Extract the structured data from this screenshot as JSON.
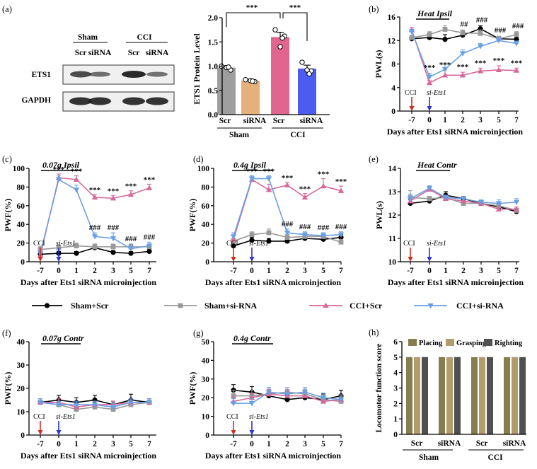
{
  "colors": {
    "sham_scr": "#000000",
    "sham_sirna": "#999999",
    "cci_scr": "#d6699b",
    "cci_sirna": "#6b9fe3",
    "bar_sham_scr": "#9e9e9e",
    "bar_sham_sirna": "#e4b07c",
    "bar_cci_scr": "#e0668f",
    "bar_cci_sirna": "#4d5cf0",
    "placing": "#857e4e",
    "grasping": "#b39c6b",
    "righting": "#505050",
    "cci_arrow": "#d62a20",
    "si_arrow": "#2a35d6"
  },
  "legend": {
    "sham_scr": "Sham+Scr",
    "sham_sirna": "Sham+si-RNA",
    "cci_scr": "CCI+Scr",
    "cci_sirna": "CCI+si-RNA"
  },
  "blot": {
    "panel_label": "(a)",
    "groups": [
      "Sham",
      "CCI"
    ],
    "lanes": [
      "Scr",
      "siRNA",
      "Scr",
      "siRNA"
    ],
    "rows": [
      "ETS1",
      "GAPDH"
    ]
  },
  "chart_data": [
    {
      "id": "a",
      "type": "bar",
      "panel_label": "",
      "ylabel": "ETS1 Protein Level",
      "ylim": [
        0,
        2.0
      ],
      "yticks": [
        "0.0",
        "0.5",
        "1.0",
        "1.5",
        "2.0"
      ],
      "categories": [
        "Scr",
        "siRNA",
        "Scr",
        "siRNA"
      ],
      "groups": [
        "Sham",
        "CCI"
      ],
      "values": [
        0.97,
        0.7,
        1.6,
        0.95
      ],
      "errors": [
        0.04,
        0.03,
        0.1,
        0.07
      ],
      "points": [
        [
          1.0,
          0.92,
          0.97,
          0.98
        ],
        [
          0.72,
          0.68,
          0.7,
          0.69
        ],
        [
          1.75,
          1.62,
          1.4,
          1.58
        ],
        [
          1.08,
          0.9,
          0.92,
          0.84
        ]
      ],
      "significance": [
        "***",
        "***"
      ]
    },
    {
      "id": "b",
      "type": "line",
      "panel_label": "(b)",
      "title": "Heat Ipsil",
      "ylabel": "PWL(s)",
      "xlabel": "Days after Ets1 siRNA microinjection",
      "ylim": [
        0,
        16
      ],
      "yticks": [
        "0",
        "4",
        "8",
        "12",
        "16"
      ],
      "xticks": [
        "-7",
        "0",
        "1",
        "2",
        "3",
        "5",
        "7"
      ],
      "series": [
        {
          "name": "Sham+Scr",
          "key": "sham_scr",
          "values": [
            12.3,
            12.5,
            12.2,
            12.9,
            14.0,
            12.3,
            12.2
          ],
          "errors": [
            0.4,
            0.4,
            0.8,
            0.6,
            0.5,
            0.4,
            0.4
          ]
        },
        {
          "name": "Sham+si-RNA",
          "key": "sham_sirna",
          "values": [
            12.5,
            13.0,
            13.9,
            13.3,
            13.2,
            12.3,
            13.0
          ],
          "errors": [
            0.4,
            0.5,
            0.6,
            0.5,
            0.6,
            0.4,
            0.5
          ]
        },
        {
          "name": "CCI+Scr",
          "key": "cci_scr",
          "values": [
            13.8,
            4.8,
            6.1,
            6.1,
            6.8,
            7.0,
            6.9
          ],
          "errors": [
            0.4,
            0.4,
            0.9,
            0.5,
            0.5,
            0.7,
            0.4
          ]
        },
        {
          "name": "CCI+si-RNA",
          "key": "cci_sirna",
          "values": [
            13.5,
            5.8,
            7.1,
            9.8,
            11.0,
            12.0,
            11.5
          ],
          "errors": [
            0.4,
            0.6,
            0.9,
            0.6,
            0.5,
            0.5,
            0.4
          ]
        }
      ],
      "stars": [
        "",
        "***",
        "***",
        "***",
        "***",
        "***",
        "***"
      ],
      "hashes": [
        "",
        "",
        "",
        "##",
        "###",
        "###",
        "###"
      ],
      "cci_label": "CCI",
      "si_label": "si-Ets1"
    },
    {
      "id": "c",
      "type": "line",
      "panel_label": "(c)",
      "title": "0.07g Ipsil",
      "ylabel": "PWF(%)",
      "xlabel": "Days after Ets1 siRNA microinjection",
      "ylim": [
        0,
        100
      ],
      "yticks": [
        "0",
        "20",
        "40",
        "60",
        "80",
        "100"
      ],
      "xticks": [
        "-7",
        "0",
        "1",
        "2",
        "3",
        "5",
        "7"
      ],
      "series": [
        {
          "name": "Sham+Scr",
          "key": "sham_scr",
          "values": [
            8,
            9,
            9,
            15,
            10,
            9,
            11
          ],
          "errors": [
            2,
            2,
            2,
            3,
            2,
            2,
            2
          ]
        },
        {
          "name": "Sham+si-RNA",
          "key": "sham_sirna",
          "values": [
            13,
            15,
            17,
            16,
            16,
            16,
            16
          ],
          "errors": [
            3,
            3,
            3,
            3,
            3,
            3,
            3
          ]
        },
        {
          "name": "CCI+Scr",
          "key": "cci_scr",
          "values": [
            7,
            90,
            88,
            69,
            68,
            72,
            79
          ],
          "errors": [
            3,
            4,
            4,
            3,
            3,
            4,
            4
          ]
        },
        {
          "name": "CCI+si-RNA",
          "key": "cci_sirna",
          "values": [
            9,
            88,
            77,
            27,
            25,
            14,
            17
          ],
          "errors": [
            3,
            4,
            5,
            4,
            6,
            4,
            4
          ]
        }
      ],
      "stars": [
        "",
        "***",
        "***",
        "***",
        "***",
        "***",
        "***"
      ],
      "hashes": [
        "",
        "",
        "",
        "###",
        "###",
        "###",
        "###"
      ],
      "cci_label": "CCI",
      "si_label": "si-Ets1"
    },
    {
      "id": "d",
      "type": "line",
      "panel_label": "(d)",
      "title": "0.4g Ipsil",
      "ylabel": "PWF(%)",
      "xlabel": "Days after Ets1 siRNA microinjection",
      "ylim": [
        0,
        100
      ],
      "yticks": [
        "0",
        "20",
        "40",
        "60",
        "80",
        "100"
      ],
      "xticks": [
        "-7",
        "0",
        "1",
        "2",
        "3",
        "5",
        "7"
      ],
      "series": [
        {
          "name": "Sham+Scr",
          "key": "sham_scr",
          "values": [
            17,
            23,
            22,
            22,
            25,
            24,
            26
          ],
          "errors": [
            3,
            3,
            3,
            3,
            3,
            3,
            3
          ]
        },
        {
          "name": "Sham+si-RNA",
          "key": "sham_sirna",
          "values": [
            22,
            29,
            31,
            26,
            27,
            27,
            21
          ],
          "errors": [
            3,
            3,
            4,
            3,
            3,
            3,
            3
          ]
        },
        {
          "name": "CCI+Scr",
          "key": "cci_scr",
          "values": [
            24,
            88,
            77,
            82,
            69,
            81,
            76
          ],
          "errors": [
            4,
            4,
            6,
            3,
            4,
            8,
            5
          ]
        },
        {
          "name": "CCI+si-RNA",
          "key": "cci_sirna",
          "values": [
            27,
            89,
            89,
            31,
            29,
            28,
            29
          ],
          "errors": [
            4,
            3,
            3,
            4,
            3,
            3,
            3
          ]
        }
      ],
      "stars": [
        "",
        "***",
        "***",
        "***",
        "***",
        "***",
        "***"
      ],
      "hashes": [
        "",
        "",
        "",
        "###",
        "###",
        "###",
        "###"
      ],
      "cci_label": "CCI",
      "si_label": "si-Ets1"
    },
    {
      "id": "e",
      "type": "line",
      "panel_label": "(e)",
      "title": "Heat Contr",
      "ylabel": "PWL(s)",
      "xlabel": "Days after Ets1 siRNA microinjection",
      "ylim": [
        10,
        14
      ],
      "yticks": [
        "10",
        "11",
        "12",
        "13",
        "14"
      ],
      "xticks": [
        "-7",
        "0",
        "1",
        "2",
        "3",
        "5",
        "7"
      ],
      "series": [
        {
          "name": "Sham+Scr",
          "key": "sham_scr",
          "values": [
            12.5,
            12.6,
            12.85,
            12.7,
            12.5,
            12.35,
            12.15
          ],
          "errors": [
            0.15,
            0.1,
            0.15,
            0.1,
            0.1,
            0.1,
            0.1
          ]
        },
        {
          "name": "Sham+si-RNA",
          "key": "sham_sirna",
          "values": [
            12.75,
            12.7,
            12.75,
            12.5,
            12.5,
            12.4,
            12.2
          ],
          "errors": [
            0.3,
            0.1,
            0.1,
            0.1,
            0.1,
            0.1,
            0.1
          ]
        },
        {
          "name": "CCI+Scr",
          "key": "cci_scr",
          "values": [
            12.6,
            13.1,
            12.7,
            12.6,
            12.5,
            12.25,
            12.25
          ],
          "errors": [
            0.15,
            0.1,
            0.1,
            0.1,
            0.1,
            0.1,
            0.1
          ]
        },
        {
          "name": "CCI+si-RNA",
          "key": "cci_sirna",
          "values": [
            12.7,
            13.15,
            12.75,
            12.7,
            12.55,
            12.5,
            12.55
          ],
          "errors": [
            0.2,
            0.1,
            0.1,
            0.1,
            0.1,
            0.15,
            0.15
          ]
        }
      ],
      "stars": [],
      "hashes": [],
      "cci_label": "CCI",
      "si_label": "si-Ets1"
    },
    {
      "id": "f",
      "type": "line",
      "panel_label": "(f)",
      "title": "0.07g Contr",
      "ylabel": "PWF(%)",
      "xlabel": "Days after Ets1 siRNA microinjection",
      "ylim": [
        0,
        40
      ],
      "yticks": [
        "0",
        "10",
        "20",
        "30",
        "40"
      ],
      "xticks": [
        "-7",
        "0",
        "1",
        "2",
        "3",
        "5",
        "7"
      ],
      "series": [
        {
          "name": "Sham+Scr",
          "key": "sham_scr",
          "values": [
            14,
            15,
            14,
            15,
            13,
            15,
            14
          ],
          "errors": [
            1.5,
            2,
            2,
            2,
            1.5,
            2.5,
            1.5
          ]
        },
        {
          "name": "Sham+si-RNA",
          "key": "sham_sirna",
          "values": [
            14,
            13,
            11,
            12,
            11,
            13,
            14
          ],
          "errors": [
            1.5,
            1.5,
            1.5,
            1.5,
            1.5,
            1.5,
            1.5
          ]
        },
        {
          "name": "CCI+Scr",
          "key": "cci_scr",
          "values": [
            14,
            14,
            12,
            13,
            13,
            14,
            14
          ],
          "errors": [
            1.5,
            1.5,
            1.5,
            1.5,
            1.5,
            1.5,
            1.5
          ]
        },
        {
          "name": "CCI+si-RNA",
          "key": "cci_sirna",
          "values": [
            14,
            13,
            13,
            13,
            12,
            14,
            14
          ],
          "errors": [
            1.5,
            1.5,
            1.5,
            1.5,
            1.5,
            1.5,
            1.5
          ]
        }
      ],
      "stars": [],
      "hashes": [],
      "cci_label": "CCI",
      "si_label": "si-Ets1"
    },
    {
      "id": "g",
      "type": "line",
      "panel_label": "(g)",
      "title": "0.4g Contr",
      "ylabel": "PWF(%)",
      "xlabel": "Days after Ets1 siRNA microinjection",
      "ylim": [
        0,
        50
      ],
      "yticks": [
        "0",
        "10",
        "20",
        "30",
        "40",
        "50"
      ],
      "xticks": [
        "-7",
        "0",
        "1",
        "2",
        "3",
        "5",
        "7"
      ],
      "series": [
        {
          "name": "Sham+Scr",
          "key": "sham_scr",
          "values": [
            24,
            23,
            21,
            19,
            20,
            19,
            21
          ],
          "errors": [
            3,
            3,
            2.5,
            2.5,
            3,
            3,
            3
          ]
        },
        {
          "name": "Sham+si-RNA",
          "key": "sham_sirna",
          "values": [
            21,
            21,
            22,
            23,
            22,
            19,
            18
          ],
          "errors": [
            3,
            3,
            2.5,
            2.5,
            2.5,
            2.5,
            2.5
          ]
        },
        {
          "name": "CCI+Scr",
          "key": "cci_scr",
          "values": [
            18,
            20,
            22,
            21,
            21,
            18,
            19
          ],
          "errors": [
            2.5,
            2.5,
            2.5,
            2.5,
            2.5,
            2.5,
            2.5
          ]
        },
        {
          "name": "CCI+si-RNA",
          "key": "cci_sirna",
          "values": [
            17,
            17,
            23,
            22,
            23,
            20,
            19
          ],
          "errors": [
            2.5,
            2.5,
            2.5,
            2.5,
            2.5,
            2.5,
            2.5
          ]
        }
      ],
      "stars": [],
      "hashes": [],
      "cci_label": "CCI",
      "si_label": "si-Ets1"
    },
    {
      "id": "h",
      "type": "bar",
      "panel_label": "(h)",
      "ylabel": "Locomotor function score",
      "ylim": [
        0,
        6
      ],
      "yticks": [
        "0",
        "1",
        "2",
        "3",
        "4",
        "5",
        "6"
      ],
      "categories": [
        "Scr",
        "siRNA",
        "Scr",
        "siRNA"
      ],
      "groups": [
        "Sham",
        "CCI"
      ],
      "series": [
        {
          "name": "Placing",
          "key": "placing",
          "values": [
            5,
            5,
            5,
            5
          ]
        },
        {
          "name": "Grasping",
          "key": "grasping",
          "values": [
            5,
            5,
            5,
            5
          ]
        },
        {
          "name": "Righting",
          "key": "righting",
          "values": [
            5,
            5,
            5,
            5
          ]
        }
      ]
    }
  ]
}
